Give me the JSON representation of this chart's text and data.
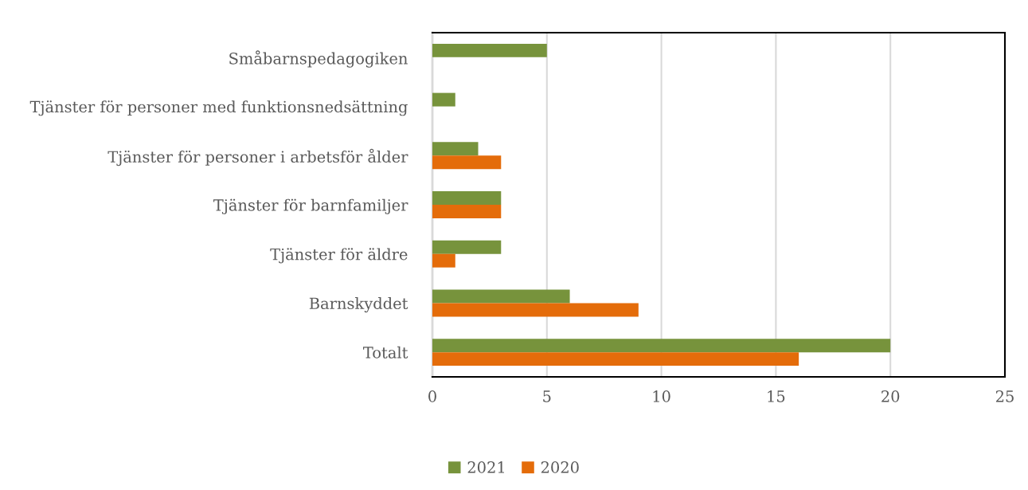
{
  "chart_data": {
    "type": "bar",
    "orientation": "horizontal",
    "categories": [
      "Småbarnspedagogiken",
      "Tjänster för personer med funktionsnedsättning",
      "Tjänster för personer i arbetsför ålder",
      "Tjänster för barnfamiljer",
      "Tjänster för äldre",
      "Barnskyddet",
      "Totalt"
    ],
    "series": [
      {
        "name": "2021",
        "color": "#77933c",
        "values": [
          5,
          1,
          2,
          3,
          3,
          6,
          20
        ]
      },
      {
        "name": "2020",
        "color": "#e46c0a",
        "values": [
          null,
          null,
          3,
          3,
          1,
          9,
          16
        ]
      }
    ],
    "xlim": [
      0,
      25
    ],
    "xticks": [
      0,
      5,
      10,
      15,
      20,
      25
    ],
    "grid": "x",
    "legend": "bottom"
  }
}
